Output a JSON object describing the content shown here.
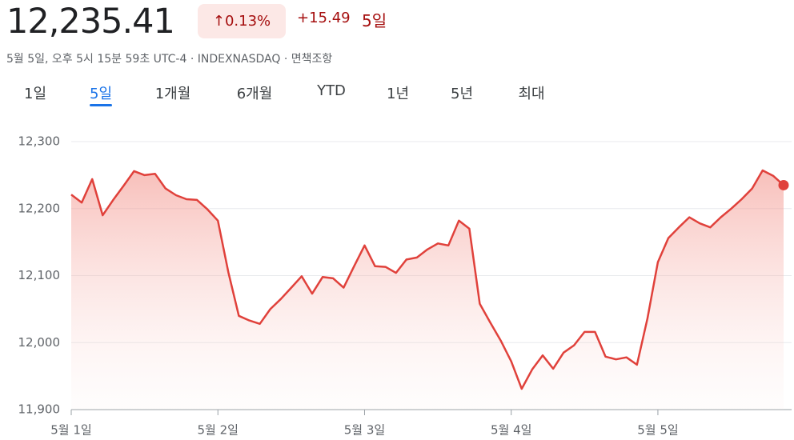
{
  "header": {
    "price": "12,235.41",
    "change_percent": "0.13%",
    "change": "+15.49",
    "period": "5일",
    "subtitle": "5월 5일, 오후 5시 15분 59초 UTC-4 · INDEXNASDAQ · 면책조항"
  },
  "tabs": [
    {
      "label": "1일"
    },
    {
      "label": "5일",
      "selected": true
    },
    {
      "label": "1개월"
    },
    {
      "label": "6개월"
    },
    {
      "label": "YTD"
    },
    {
      "label": "1년"
    },
    {
      "label": "5년"
    },
    {
      "label": "최대"
    }
  ],
  "chart_data": {
    "type": "line",
    "color": "#e0413b",
    "grid": true,
    "categories": [
      "5월 1일",
      null,
      null,
      null,
      null,
      null,
      null,
      null,
      null,
      null,
      null,
      null,
      null,
      null,
      "5월 2일",
      null,
      null,
      null,
      null,
      null,
      null,
      null,
      null,
      null,
      null,
      null,
      null,
      null,
      "5월 3일",
      null,
      null,
      null,
      null,
      null,
      null,
      null,
      null,
      null,
      null,
      null,
      null,
      null,
      "5월 4일",
      null,
      null,
      null,
      null,
      null,
      null,
      null,
      null,
      null,
      null,
      null,
      null,
      null,
      "5월 5일",
      null,
      null,
      null,
      null,
      null,
      null,
      null,
      null,
      null,
      null,
      null,
      null
    ],
    "values": [
      12221,
      12209,
      12244,
      12190,
      12213,
      12234,
      12256,
      12250,
      12252,
      12230,
      12220,
      12214,
      12213,
      12199,
      12182,
      12105,
      12040,
      12033,
      12028,
      12050,
      12065,
      12082,
      12099,
      12073,
      12098,
      12096,
      12082,
      12114,
      12145,
      12114,
      12113,
      12104,
      12124,
      12127,
      12139,
      12148,
      12145,
      12182,
      12170,
      12058,
      12030,
      12003,
      11972,
      11931,
      11960,
      11981,
      11961,
      11985,
      11996,
      12016,
      12016,
      11979,
      11975,
      11978,
      11967,
      12036,
      12120,
      12156,
      12172,
      12187,
      12178,
      12172,
      12187,
      12200,
      12214,
      12230,
      12257,
      12249,
      12235
    ],
    "ylim": [
      11900,
      12300
    ],
    "yticks": [
      {
        "value": 11900,
        "label": "11,900"
      },
      {
        "value": 12000,
        "label": "12,000"
      },
      {
        "value": 12100,
        "label": "12,100"
      },
      {
        "value": 12200,
        "label": "12,200"
      },
      {
        "value": 12300,
        "label": "12,300"
      }
    ]
  }
}
